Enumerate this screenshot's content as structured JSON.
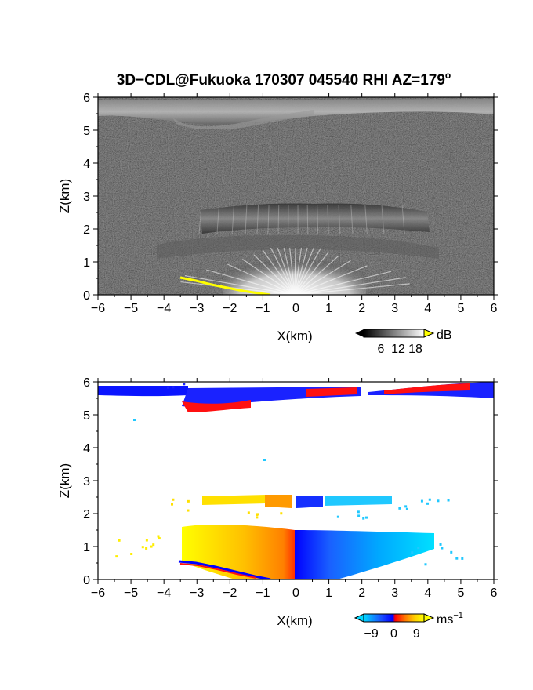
{
  "figure": {
    "title_main": "3D−CDL@Fukuoka 170307 045540 RHI AZ=179",
    "title_deg": "o"
  },
  "chart_data": [
    {
      "type": "heatmap",
      "quantity": "reflectivity",
      "xlabel": "X(km)",
      "ylabel": "Z(km)",
      "xlim": [
        -6,
        6
      ],
      "ylim": [
        0,
        6
      ],
      "xticks": [
        "−6",
        "−5",
        "−4",
        "−3",
        "−2",
        "−1",
        "0",
        "1",
        "2",
        "3",
        "4",
        "5",
        "6"
      ],
      "yticks": [
        "0",
        "1",
        "2",
        "3",
        "4",
        "5",
        "6"
      ],
      "colorbar": {
        "ticks": [
          "6",
          "12",
          "18"
        ],
        "tick_values": [
          6,
          12,
          18
        ],
        "range": [
          0,
          21
        ],
        "unit": "dB",
        "colors": [
          "#000000",
          "#ffffff"
        ],
        "over_color": "#ffff00"
      },
      "features": [
        {
          "desc": "noise background",
          "x": [
            -6,
            6
          ],
          "z": [
            0,
            5.5
          ],
          "value_db": 3
        },
        {
          "desc": "cloud layer",
          "x": [
            -6,
            6
          ],
          "z": [
            5.5,
            6.0
          ],
          "value_db": 10
        },
        {
          "desc": "aerosol layer",
          "x": [
            -3,
            4
          ],
          "z": [
            2.0,
            2.6
          ],
          "value_db": 6
        },
        {
          "desc": "boundary layer",
          "x": [
            -2.2,
            2.2
          ],
          "z": [
            0,
            1.5
          ],
          "value_db": 12
        },
        {
          "desc": "ground clutter line",
          "x": [
            -3.5,
            -0.8
          ],
          "z": [
            0.5,
            0.0
          ],
          "value_db": 21
        }
      ]
    },
    {
      "type": "heatmap",
      "quantity": "Doppler velocity",
      "xlabel": "X(km)",
      "ylabel": "Z(km)",
      "xlim": [
        -6,
        6
      ],
      "ylim": [
        0,
        6
      ],
      "xticks": [
        "−6",
        "−5",
        "−4",
        "−3",
        "−2",
        "−1",
        "0",
        "1",
        "2",
        "3",
        "4",
        "5",
        "6"
      ],
      "yticks": [
        "0",
        "1",
        "2",
        "3",
        "4",
        "5",
        "6"
      ],
      "colorbar": {
        "ticks": [
          "−9",
          "0",
          "9"
        ],
        "tick_values": [
          -9,
          0,
          9
        ],
        "range": [
          -12,
          12
        ],
        "unit": "ms",
        "unit_sup": "−1",
        "colors": [
          "#00d8ff",
          "#1a4cff",
          "#0000ff",
          "#ff0000",
          "#ff8000",
          "#ffd000",
          "#ffff00"
        ]
      },
      "features": [
        {
          "desc": "cloud layer west",
          "x": [
            -6,
            -0.5
          ],
          "z": [
            5.5,
            5.9
          ],
          "velocity": -11
        },
        {
          "desc": "cloud layer mixed",
          "x": [
            -3.3,
            2
          ],
          "z": [
            5.0,
            5.8
          ],
          "velocity": 11
        },
        {
          "desc": "cloud layer east",
          "x": [
            2.2,
            6
          ],
          "z": [
            5.5,
            6.0
          ],
          "velocity": 11
        },
        {
          "desc": "aerosol layer west",
          "x": [
            -2.8,
            0
          ],
          "z": [
            2.2,
            2.5
          ],
          "velocity": 5
        },
        {
          "desc": "aerosol layer east",
          "x": [
            0.9,
            3
          ],
          "z": [
            2.2,
            2.5
          ],
          "velocity": -8
        },
        {
          "desc": "boundary layer west",
          "x": [
            -3.1,
            0
          ],
          "z": [
            0,
            1.6
          ],
          "velocity": 5
        },
        {
          "desc": "boundary layer east",
          "x": [
            0,
            4
          ],
          "z": [
            0,
            1.4
          ],
          "velocity": -6
        }
      ]
    }
  ],
  "colors": {
    "frame": "#000000",
    "background": "#ffffff",
    "clutter": "#ffff00"
  }
}
